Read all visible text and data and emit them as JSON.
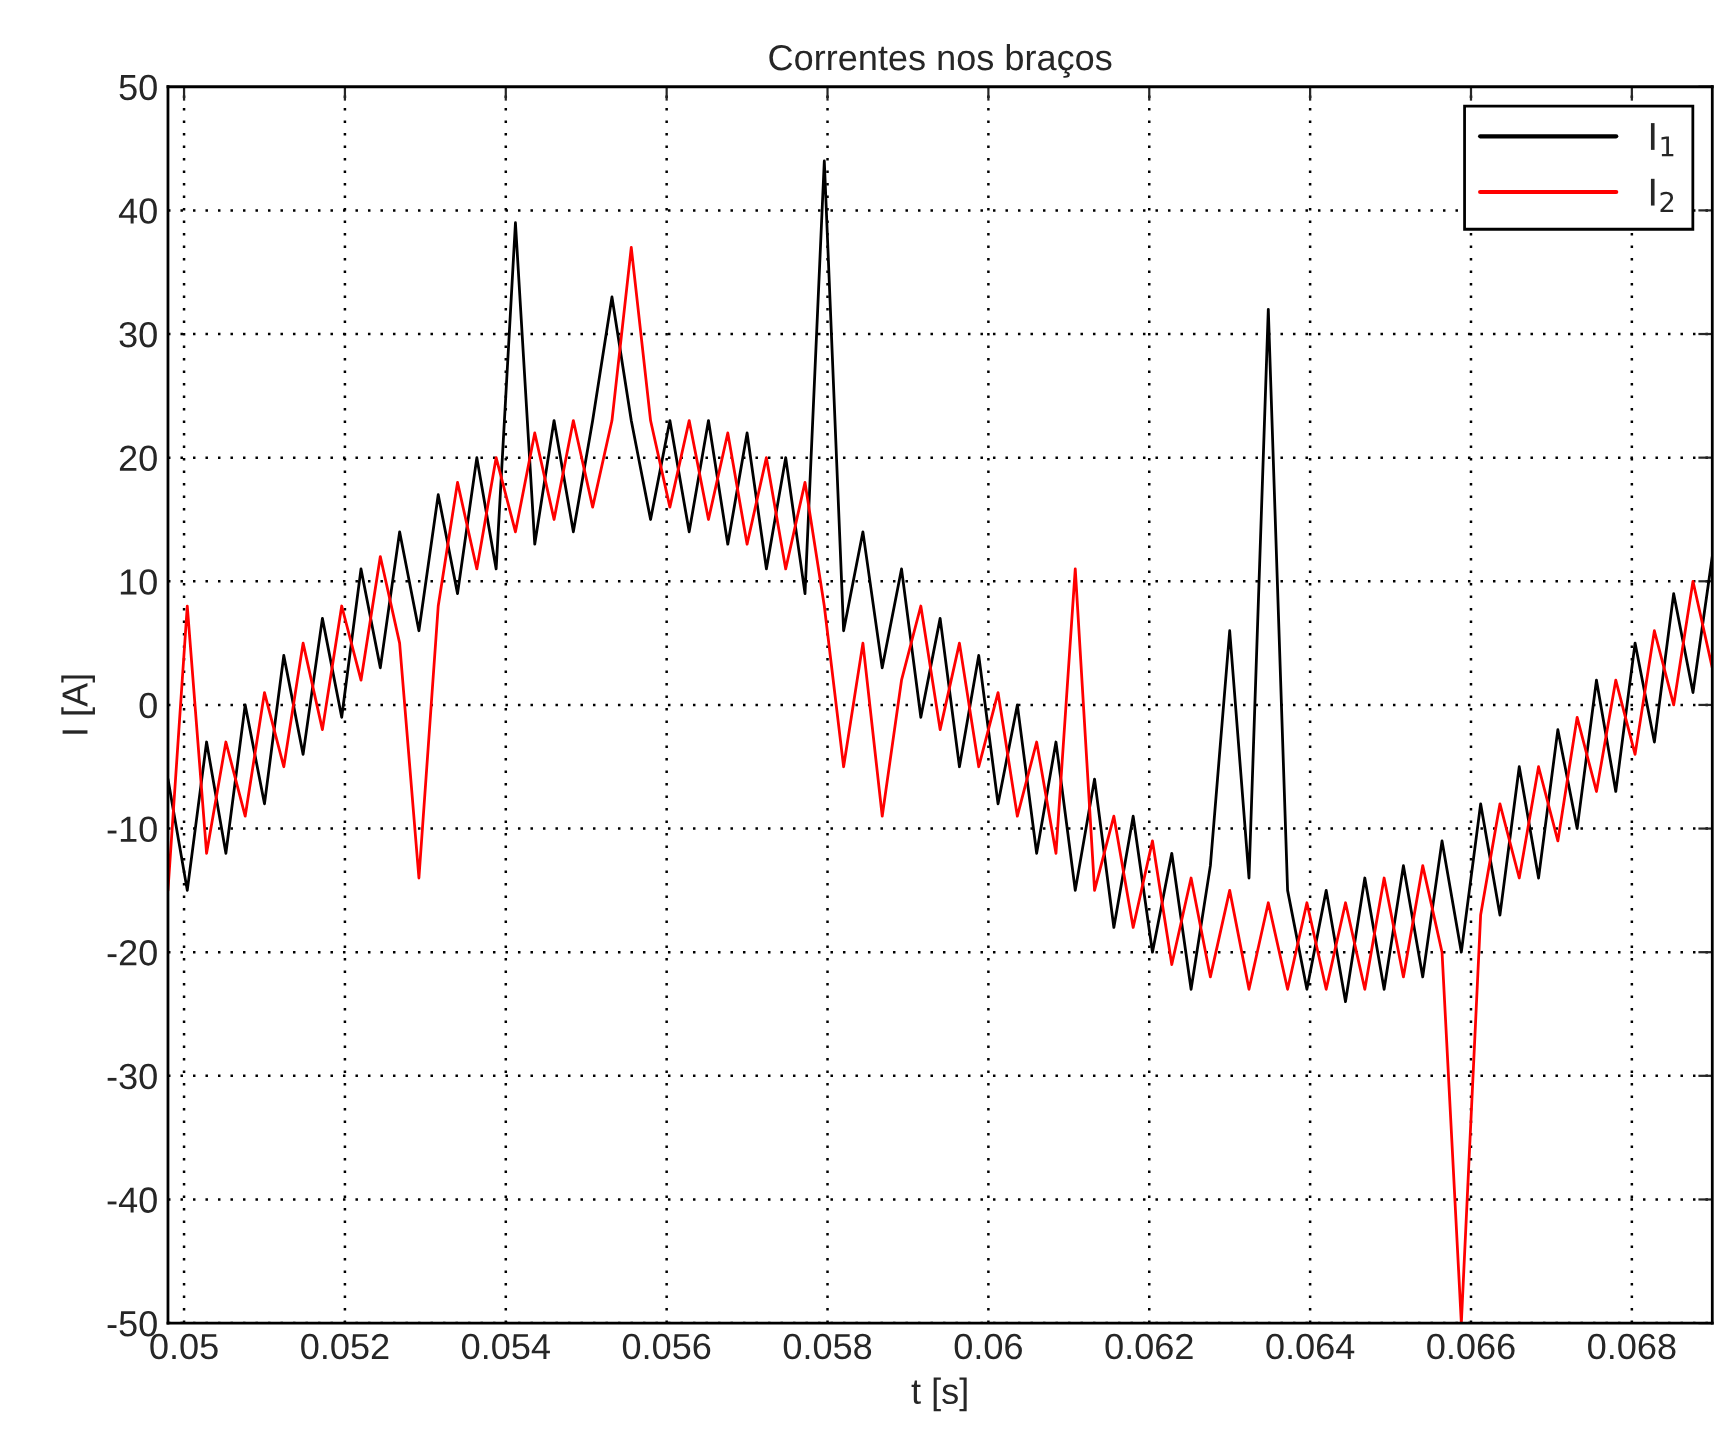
{
  "chart_data": {
    "type": "line",
    "title": "Correntes nos braços",
    "xlabel": "t [s]",
    "ylabel": "I [A]",
    "xlim": [
      0.0498,
      0.069
    ],
    "ylim": [
      -50,
      50
    ],
    "xticks": [
      0.05,
      0.052,
      0.054,
      0.056,
      0.058,
      0.06,
      0.062,
      0.064,
      0.066,
      0.068
    ],
    "yticks": [
      -50,
      -40,
      -30,
      -20,
      -10,
      0,
      10,
      20,
      30,
      40,
      50
    ],
    "grid": true,
    "legend": "top right",
    "line_style": "solid",
    "marker": "none",
    "x": [
      0.0498,
      0.05004,
      0.05028,
      0.05052,
      0.05076,
      0.051,
      0.05124,
      0.05148,
      0.05172,
      0.05196,
      0.0522,
      0.05244,
      0.05268,
      0.05292,
      0.05316,
      0.0534,
      0.05364,
      0.05388,
      0.05412,
      0.05436,
      0.0546,
      0.05484,
      0.05508,
      0.05532,
      0.05556,
      0.0558,
      0.05604,
      0.05628,
      0.05652,
      0.05676,
      0.057,
      0.05724,
      0.05748,
      0.05772,
      0.05796,
      0.0582,
      0.05844,
      0.05868,
      0.05892,
      0.05916,
      0.0594,
      0.05964,
      0.05988,
      0.06012,
      0.06036,
      0.0606,
      0.06084,
      0.06108,
      0.06132,
      0.06156,
      0.0618,
      0.06204,
      0.06228,
      0.06252,
      0.06276,
      0.063,
      0.06324,
      0.06348,
      0.06372,
      0.06396,
      0.0642,
      0.06444,
      0.06468,
      0.06492,
      0.06516,
      0.0654,
      0.06564,
      0.06588,
      0.06612,
      0.06636,
      0.0666,
      0.06684,
      0.06708,
      0.06732,
      0.06756,
      0.0678,
      0.06804,
      0.06828,
      0.06852,
      0.06876,
      0.069
    ],
    "series": [
      {
        "name": "I$_{1}$",
        "color": "#000000",
        "values": [
          -6,
          -15,
          -3,
          -12,
          0,
          -8,
          4,
          -4,
          7,
          -1,
          11,
          3,
          14,
          6,
          17,
          9,
          20,
          11,
          39,
          13,
          23,
          14,
          23,
          33,
          23,
          15,
          23,
          14,
          23,
          13,
          22,
          11,
          20,
          9,
          44,
          6,
          14,
          3,
          11,
          -1,
          7,
          -5,
          4,
          -8,
          0,
          -12,
          -3,
          -15,
          -6,
          -18,
          -9,
          -20,
          -12,
          -23,
          -13,
          6,
          -14,
          32,
          -15,
          -23,
          -15,
          -24,
          -14,
          -23,
          -13,
          -22,
          -11,
          -20,
          -8,
          -17,
          -5,
          -14,
          -2,
          -10,
          2,
          -7,
          5,
          -3,
          9,
          1,
          12
        ]
      },
      {
        "name": "I$_{2}$",
        "color": "#ff0000",
        "values": [
          -15,
          8,
          -12,
          -3,
          -9,
          1,
          -5,
          5,
          -2,
          8,
          2,
          12,
          5,
          -14,
          8,
          18,
          11,
          20,
          14,
          22,
          15,
          23,
          16,
          23,
          37,
          23,
          16,
          23,
          15,
          22,
          13,
          20,
          11,
          18,
          8,
          -5,
          5,
          -9,
          2,
          8,
          -2,
          5,
          -5,
          1,
          -9,
          -3,
          -12,
          11,
          -15,
          -9,
          -18,
          -11,
          -21,
          -14,
          -22,
          -15,
          -23,
          -16,
          -23,
          -16,
          -23,
          -16,
          -23,
          -14,
          -22,
          -13,
          -20,
          -50,
          -17,
          -8,
          -14,
          -5,
          -11,
          -1,
          -7,
          2,
          -4,
          6,
          0,
          10,
          3
        ]
      }
    ]
  }
}
